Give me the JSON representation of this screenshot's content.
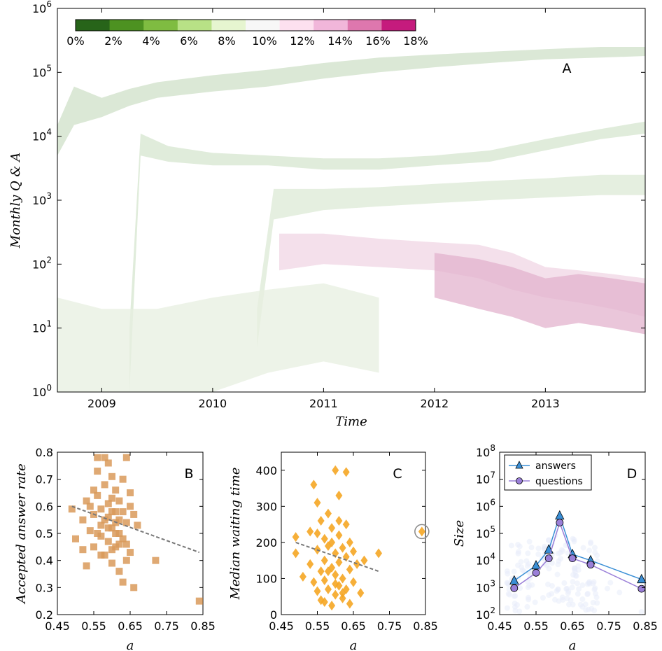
{
  "chart_data": [
    {
      "panel": "A",
      "type": "area",
      "xlabel": "Time",
      "ylabel": "Monthly Q & A",
      "yscale": "log",
      "ylim": [
        1,
        1000000
      ],
      "xlim": [
        2008.6,
        2013.9
      ],
      "x_ticks": [
        "2009",
        "2010",
        "2011",
        "2012",
        "2013"
      ],
      "y_ticks": [
        "10^0",
        "10^1",
        "10^2",
        "10^3",
        "10^4",
        "10^5",
        "10^6"
      ],
      "colorbar": {
        "tick_labels": [
          "0%",
          "2%",
          "4%",
          "6%",
          "8%",
          "10%",
          "12%",
          "14%",
          "16%",
          "18%"
        ],
        "colors": [
          "#276419",
          "#4d9221",
          "#7fbc41",
          "#b8e186",
          "#e6f5d0",
          "#f7f7f7",
          "#fde0ef",
          "#f1b6da",
          "#de77ae",
          "#c51b7d",
          "#8e0152"
        ]
      },
      "series": [
        {
          "color": "#cfe0c8",
          "x": [
            2008.6,
            2008.75,
            2009.0,
            2009.25,
            2009.5,
            2010.0,
            2010.5,
            2011.0,
            2011.5,
            2012.0,
            2012.5,
            2013.0,
            2013.5,
            2013.9
          ],
          "lo": [
            5000,
            15000,
            20000,
            30000,
            40000,
            50000,
            60000,
            80000,
            100000,
            120000,
            140000,
            160000,
            170000,
            180000
          ],
          "hi": [
            15000,
            60000,
            40000,
            55000,
            70000,
            90000,
            110000,
            140000,
            170000,
            190000,
            210000,
            230000,
            250000,
            250000
          ]
        },
        {
          "color": "#d6e6cf",
          "x": [
            2009.25,
            2009.35,
            2009.6,
            2010.0,
            2010.5,
            2011.0,
            2011.5,
            2012.0,
            2012.5,
            2013.0,
            2013.5,
            2013.9
          ],
          "lo": [
            1,
            5000,
            4000,
            3500,
            3500,
            3000,
            3000,
            3500,
            4000,
            6000,
            9000,
            11000
          ],
          "hi": [
            10,
            11000,
            7000,
            5500,
            5000,
            4500,
            4500,
            5000,
            6000,
            9000,
            13000,
            17000
          ]
        },
        {
          "color": "#dcead5",
          "x": [
            2010.4,
            2010.55,
            2011.0,
            2011.5,
            2012.0,
            2012.5,
            2013.0,
            2013.5,
            2013.9
          ],
          "lo": [
            5,
            500,
            700,
            800,
            900,
            1000,
            1100,
            1200,
            1200
          ],
          "hi": [
            20,
            1500,
            1500,
            1600,
            1800,
            2000,
            2200,
            2500,
            2500
          ]
        },
        {
          "color": "#f0d6e4",
          "x": [
            2010.6,
            2011.0,
            2011.5,
            2012.0,
            2012.4,
            2012.7,
            2013.0,
            2013.3,
            2013.6,
            2013.9
          ],
          "lo": [
            80,
            100,
            90,
            80,
            60,
            40,
            30,
            25,
            20,
            15
          ],
          "hi": [
            300,
            300,
            250,
            220,
            200,
            150,
            90,
            80,
            70,
            60
          ]
        },
        {
          "color": "#e3b3cd",
          "x": [
            2012.0,
            2012.4,
            2012.7,
            2013.0,
            2013.3,
            2013.6,
            2013.9
          ],
          "lo": [
            30,
            20,
            15,
            10,
            12,
            10,
            8
          ],
          "hi": [
            150,
            120,
            90,
            60,
            70,
            60,
            50
          ]
        },
        {
          "color": "#e7efe0",
          "x": [
            2008.6,
            2009.0,
            2009.5,
            2010.0,
            2010.5,
            2011.0,
            2011.5
          ],
          "lo": [
            1,
            1,
            1,
            1,
            2,
            3,
            2
          ],
          "hi": [
            30,
            20,
            20,
            30,
            40,
            50,
            30
          ]
        }
      ]
    },
    {
      "panel": "B",
      "type": "scatter",
      "xlabel": "a",
      "ylabel": "Accepted answer rate",
      "xlim": [
        0.45,
        0.85
      ],
      "ylim": [
        0.2,
        0.8
      ],
      "x_ticks": [
        "0.45",
        "0.55",
        "0.65",
        "0.75",
        "0.85"
      ],
      "y_ticks": [
        "0.2",
        "0.3",
        "0.4",
        "0.5",
        "0.6",
        "0.7",
        "0.8"
      ],
      "color": "#d99a5b",
      "points": [
        [
          0.49,
          0.59
        ],
        [
          0.5,
          0.48
        ],
        [
          0.52,
          0.55
        ],
        [
          0.53,
          0.62
        ],
        [
          0.54,
          0.51
        ],
        [
          0.55,
          0.57
        ],
        [
          0.55,
          0.45
        ],
        [
          0.56,
          0.73
        ],
        [
          0.56,
          0.64
        ],
        [
          0.57,
          0.53
        ],
        [
          0.57,
          0.49
        ],
        [
          0.58,
          0.68
        ],
        [
          0.58,
          0.42
        ],
        [
          0.58,
          0.78
        ],
        [
          0.59,
          0.56
        ],
        [
          0.59,
          0.47
        ],
        [
          0.59,
          0.61
        ],
        [
          0.6,
          0.71
        ],
        [
          0.6,
          0.52
        ],
        [
          0.6,
          0.44
        ],
        [
          0.6,
          0.39
        ],
        [
          0.61,
          0.66
        ],
        [
          0.61,
          0.58
        ],
        [
          0.61,
          0.5
        ],
        [
          0.62,
          0.55
        ],
        [
          0.62,
          0.36
        ],
        [
          0.62,
          0.62
        ],
        [
          0.63,
          0.48
        ],
        [
          0.63,
          0.7
        ],
        [
          0.63,
          0.32
        ],
        [
          0.64,
          0.78
        ],
        [
          0.64,
          0.54
        ],
        [
          0.64,
          0.46
        ],
        [
          0.65,
          0.6
        ],
        [
          0.65,
          0.43
        ],
        [
          0.66,
          0.57
        ],
        [
          0.66,
          0.3
        ],
        [
          0.67,
          0.53
        ],
        [
          0.72,
          0.4
        ],
        [
          0.84,
          0.25
        ],
        [
          0.52,
          0.44
        ],
        [
          0.53,
          0.38
        ],
        [
          0.54,
          0.6
        ],
        [
          0.55,
          0.66
        ],
        [
          0.56,
          0.5
        ],
        [
          0.57,
          0.59
        ],
        [
          0.57,
          0.42
        ],
        [
          0.58,
          0.55
        ],
        [
          0.59,
          0.52
        ],
        [
          0.6,
          0.63
        ],
        [
          0.61,
          0.45
        ],
        [
          0.62,
          0.5
        ],
        [
          0.63,
          0.58
        ],
        [
          0.64,
          0.4
        ],
        [
          0.65,
          0.65
        ],
        [
          0.56,
          0.78
        ],
        [
          0.59,
          0.76
        ],
        [
          0.6,
          0.58
        ],
        [
          0.61,
          0.54
        ],
        [
          0.62,
          0.46
        ]
      ],
      "fit": {
        "x": [
          0.49,
          0.84
        ],
        "y": [
          0.6,
          0.43
        ]
      }
    },
    {
      "panel": "C",
      "type": "scatter",
      "xlabel": "a",
      "ylabel": "Median waiting time",
      "xlim": [
        0.45,
        0.85
      ],
      "ylim": [
        0,
        450
      ],
      "x_ticks": [
        "0.45",
        "0.55",
        "0.65",
        "0.75",
        "0.85"
      ],
      "y_ticks": [
        "0",
        "100",
        "200",
        "300",
        "400"
      ],
      "color": "#f5a623",
      "points": [
        [
          0.49,
          215
        ],
        [
          0.49,
          170
        ],
        [
          0.51,
          105
        ],
        [
          0.53,
          230
        ],
        [
          0.53,
          140
        ],
        [
          0.54,
          360
        ],
        [
          0.54,
          90
        ],
        [
          0.55,
          310
        ],
        [
          0.55,
          180
        ],
        [
          0.55,
          65
        ],
        [
          0.56,
          260
        ],
        [
          0.56,
          120
        ],
        [
          0.56,
          40
        ],
        [
          0.57,
          210
        ],
        [
          0.57,
          150
        ],
        [
          0.57,
          95
        ],
        [
          0.58,
          280
        ],
        [
          0.58,
          190
        ],
        [
          0.58,
          70
        ],
        [
          0.59,
          240
        ],
        [
          0.59,
          130
        ],
        [
          0.59,
          25
        ],
        [
          0.6,
          400
        ],
        [
          0.6,
          170
        ],
        [
          0.6,
          110
        ],
        [
          0.6,
          55
        ],
        [
          0.61,
          330
        ],
        [
          0.61,
          220
        ],
        [
          0.61,
          145
        ],
        [
          0.61,
          80
        ],
        [
          0.62,
          185
        ],
        [
          0.62,
          100
        ],
        [
          0.62,
          45
        ],
        [
          0.63,
          395
        ],
        [
          0.63,
          250
        ],
        [
          0.63,
          160
        ],
        [
          0.63,
          70
        ],
        [
          0.64,
          200
        ],
        [
          0.64,
          125
        ],
        [
          0.64,
          30
        ],
        [
          0.65,
          175
        ],
        [
          0.65,
          90
        ],
        [
          0.66,
          140
        ],
        [
          0.67,
          60
        ],
        [
          0.68,
          150
        ],
        [
          0.72,
          170
        ],
        [
          0.84,
          230
        ],
        [
          0.55,
          225
        ],
        [
          0.57,
          35
        ],
        [
          0.59,
          200
        ],
        [
          0.61,
          260
        ],
        [
          0.62,
          60
        ],
        [
          0.58,
          120
        ],
        [
          0.6,
          85
        ]
      ],
      "fit": {
        "x": [
          0.49,
          0.72
        ],
        "y": [
          200,
          120
        ]
      },
      "highlight": [
        0.84,
        230
      ]
    },
    {
      "panel": "D",
      "type": "line",
      "xlabel": "a",
      "ylabel": "Size",
      "yscale": "log",
      "xlim": [
        0.45,
        0.85
      ],
      "ylim": [
        100,
        100000000
      ],
      "x_ticks": [
        "0.45",
        "0.55",
        "0.65",
        "0.75",
        "0.85"
      ],
      "y_ticks": [
        "10^2",
        "10^3",
        "10^4",
        "10^5",
        "10^6",
        "10^7",
        "10^8"
      ],
      "legend": {
        "placement": "top-left"
      },
      "series": [
        {
          "name": "answers",
          "color": "#3a8fd6",
          "marker": "triangle",
          "x": [
            0.49,
            0.55,
            0.585,
            0.615,
            0.65,
            0.7,
            0.84
          ],
          "values": [
            1800,
            6500,
            25000,
            450000,
            17000,
            10000,
            2000
          ]
        },
        {
          "name": "questions",
          "color": "#9a7fd8",
          "marker": "circle",
          "x": [
            0.49,
            0.55,
            0.585,
            0.615,
            0.65,
            0.7,
            0.84
          ],
          "values": [
            950,
            3500,
            12000,
            250000,
            12000,
            7000,
            900
          ]
        }
      ]
    }
  ],
  "labels": {
    "A": "A",
    "B": "B",
    "C": "C",
    "D": "D"
  }
}
